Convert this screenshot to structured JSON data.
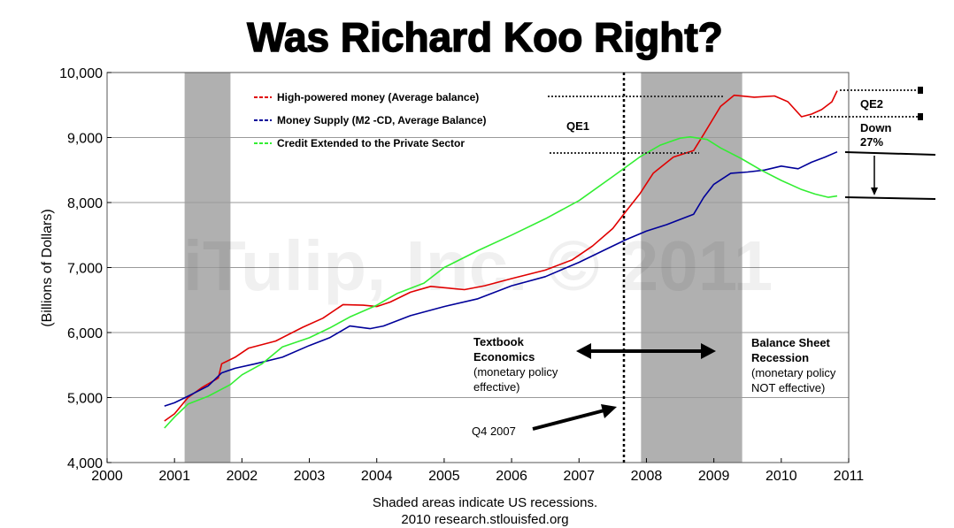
{
  "title": "Was Richard Koo Right?",
  "watermark": "iTulip, Inc. © 2011",
  "source_lines": [
    "Shaded areas indicate US recessions.",
    "2010 research.stlouisfed.org"
  ],
  "chart_data": {
    "type": "line",
    "title": "Was Richard Koo Right?",
    "xlabel": "",
    "ylabel": "(Billions of Dollars)",
    "xlim": [
      2000,
      2011
    ],
    "ylim": [
      4000,
      10000
    ],
    "xticks": [
      "2000",
      "2001",
      "2002",
      "2003",
      "2004",
      "2005",
      "2006",
      "2007",
      "2008",
      "2009",
      "2010",
      "2011"
    ],
    "yticks": [
      "4,000",
      "5,000",
      "6,000",
      "7,000",
      "8,000",
      "9,000",
      "10,000"
    ],
    "grid": true,
    "legend_position": "top-left",
    "recessions": [
      [
        2001.15,
        2001.83
      ],
      [
        2007.92,
        2009.42
      ]
    ],
    "series": [
      {
        "name": "High-powered money (Average balance)",
        "color": "#e00000",
        "points": [
          [
            2000.85,
            4640
          ],
          [
            2001.0,
            4750
          ],
          [
            2001.2,
            5000
          ],
          [
            2001.4,
            5150
          ],
          [
            2001.65,
            5300
          ],
          [
            2001.7,
            5520
          ],
          [
            2001.9,
            5620
          ],
          [
            2002.1,
            5760
          ],
          [
            2002.5,
            5870
          ],
          [
            2002.9,
            6080
          ],
          [
            2003.2,
            6220
          ],
          [
            2003.5,
            6430
          ],
          [
            2003.8,
            6420
          ],
          [
            2004.0,
            6400
          ],
          [
            2004.2,
            6470
          ],
          [
            2004.5,
            6620
          ],
          [
            2004.8,
            6710
          ],
          [
            2005.0,
            6690
          ],
          [
            2005.3,
            6660
          ],
          [
            2005.6,
            6720
          ],
          [
            2006.0,
            6830
          ],
          [
            2006.5,
            6960
          ],
          [
            2006.9,
            7120
          ],
          [
            2007.2,
            7330
          ],
          [
            2007.5,
            7600
          ],
          [
            2007.7,
            7870
          ],
          [
            2007.9,
            8130
          ],
          [
            2008.1,
            8450
          ],
          [
            2008.4,
            8700
          ],
          [
            2008.7,
            8800
          ],
          [
            2008.85,
            9050
          ],
          [
            2009.1,
            9480
          ],
          [
            2009.3,
            9650
          ],
          [
            2009.6,
            9620
          ],
          [
            2009.9,
            9640
          ],
          [
            2010.1,
            9550
          ],
          [
            2010.3,
            9320
          ],
          [
            2010.45,
            9360
          ],
          [
            2010.6,
            9430
          ],
          [
            2010.75,
            9550
          ],
          [
            2010.83,
            9720
          ]
        ]
      },
      {
        "name": "Money Supply (M2 -CD, Average Balance)",
        "color": "#000099",
        "points": [
          [
            2000.85,
            4870
          ],
          [
            2001.0,
            4920
          ],
          [
            2001.2,
            5020
          ],
          [
            2001.5,
            5180
          ],
          [
            2001.7,
            5380
          ],
          [
            2001.9,
            5450
          ],
          [
            2002.2,
            5520
          ],
          [
            2002.6,
            5620
          ],
          [
            2003.0,
            5800
          ],
          [
            2003.3,
            5920
          ],
          [
            2003.6,
            6100
          ],
          [
            2003.9,
            6060
          ],
          [
            2004.1,
            6100
          ],
          [
            2004.5,
            6260
          ],
          [
            2005.0,
            6400
          ],
          [
            2005.5,
            6520
          ],
          [
            2006.0,
            6720
          ],
          [
            2006.5,
            6860
          ],
          [
            2007.0,
            7080
          ],
          [
            2007.4,
            7280
          ],
          [
            2007.7,
            7430
          ],
          [
            2008.0,
            7560
          ],
          [
            2008.3,
            7660
          ],
          [
            2008.7,
            7820
          ],
          [
            2008.85,
            8080
          ],
          [
            2009.0,
            8280
          ],
          [
            2009.25,
            8450
          ],
          [
            2009.5,
            8470
          ],
          [
            2009.75,
            8500
          ],
          [
            2010.0,
            8560
          ],
          [
            2010.25,
            8520
          ],
          [
            2010.45,
            8620
          ],
          [
            2010.65,
            8700
          ],
          [
            2010.83,
            8780
          ]
        ]
      },
      {
        "name": "Credit Extended to the Private Sector",
        "color": "#33ee33",
        "points": [
          [
            2000.85,
            4530
          ],
          [
            2001.0,
            4700
          ],
          [
            2001.2,
            4900
          ],
          [
            2001.5,
            5020
          ],
          [
            2001.83,
            5200
          ],
          [
            2002.0,
            5350
          ],
          [
            2002.3,
            5520
          ],
          [
            2002.6,
            5780
          ],
          [
            2003.0,
            5920
          ],
          [
            2003.3,
            6070
          ],
          [
            2003.6,
            6240
          ],
          [
            2004.0,
            6420
          ],
          [
            2004.3,
            6600
          ],
          [
            2004.7,
            6760
          ],
          [
            2005.0,
            7000
          ],
          [
            2005.5,
            7260
          ],
          [
            2006.0,
            7500
          ],
          [
            2006.5,
            7750
          ],
          [
            2007.0,
            8030
          ],
          [
            2007.5,
            8400
          ],
          [
            2007.9,
            8700
          ],
          [
            2008.2,
            8880
          ],
          [
            2008.5,
            8990
          ],
          [
            2008.65,
            9010
          ],
          [
            2008.9,
            8970
          ],
          [
            2009.1,
            8840
          ],
          [
            2009.4,
            8680
          ],
          [
            2009.7,
            8500
          ],
          [
            2010.0,
            8340
          ],
          [
            2010.3,
            8200
          ],
          [
            2010.5,
            8130
          ],
          [
            2010.7,
            8080
          ],
          [
            2010.83,
            8100
          ]
        ]
      }
    ],
    "annotations": {
      "qe1": "QE1",
      "qe2": "QE2",
      "down": [
        "Down",
        "27%"
      ],
      "textbook": [
        "Textbook",
        "Economics",
        "(monetary policy",
        "effective)"
      ],
      "bsr": [
        "Balance Sheet",
        "Recession",
        "(monetary policy",
        "NOT effective)"
      ],
      "q4": "Q4 2007"
    }
  }
}
